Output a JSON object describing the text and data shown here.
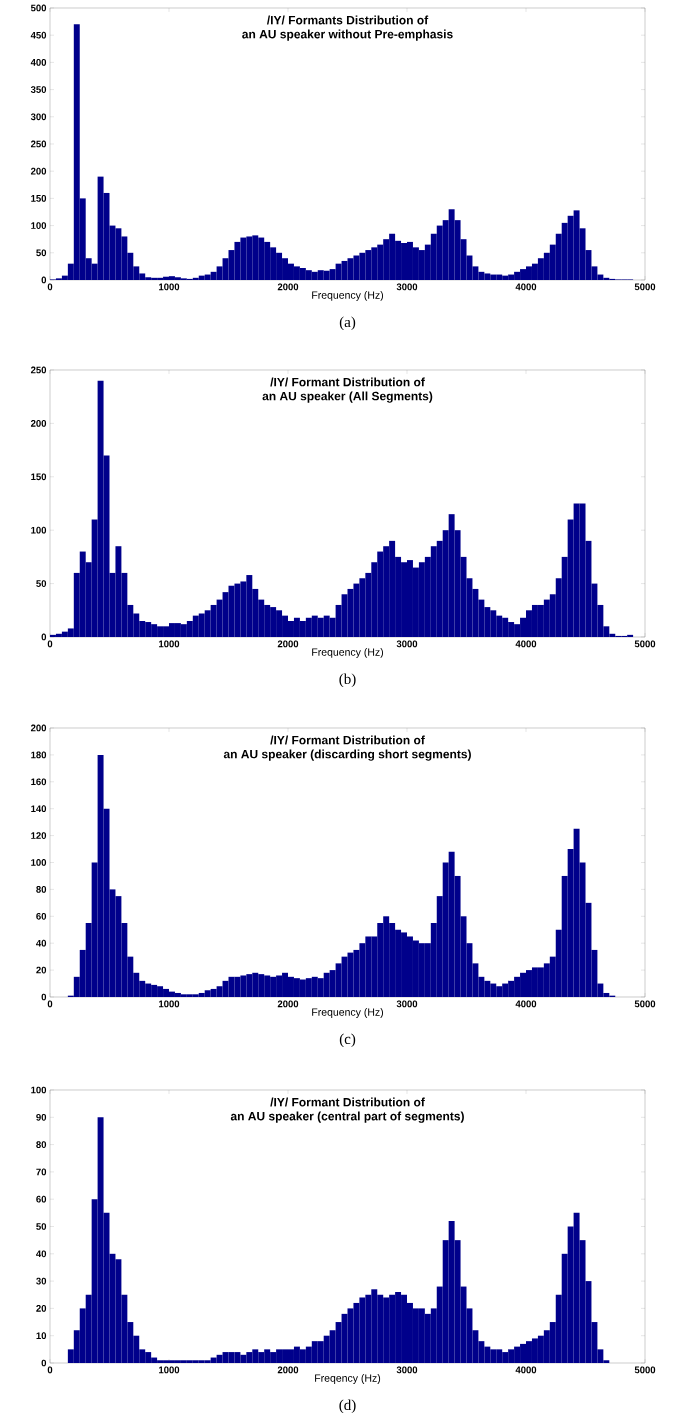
{
  "chart_data": [
    {
      "type": "histogram",
      "title": "/IY/ Formants Distribution of",
      "subtitle": "an AU speaker  without Pre-emphasis",
      "xlabel": "Frequency (Hz)",
      "annotations": [
        "(a)"
      ],
      "color": "#00008b",
      "xlim": [
        0,
        5000
      ],
      "ylim": [
        0,
        500
      ],
      "xticks": [
        0,
        1000,
        2000,
        3000,
        4000,
        5000
      ],
      "yticks": [
        0,
        50,
        100,
        150,
        200,
        250,
        300,
        350,
        400,
        450,
        500
      ],
      "grid": false,
      "bins": [
        0,
        50,
        100,
        150,
        200,
        250,
        300,
        350,
        400,
        450,
        500,
        550,
        600,
        650,
        700,
        750,
        800,
        850,
        900,
        950,
        1000,
        1050,
        1100,
        1150,
        1200,
        1250,
        1300,
        1350,
        1400,
        1450,
        1500,
        1550,
        1600,
        1650,
        1700,
        1750,
        1800,
        1850,
        1900,
        1950,
        2000,
        2050,
        2100,
        2150,
        2200,
        2250,
        2300,
        2350,
        2400,
        2450,
        2500,
        2550,
        2600,
        2650,
        2700,
        2750,
        2800,
        2850,
        2900,
        2950,
        3000,
        3050,
        3100,
        3150,
        3200,
        3250,
        3300,
        3350,
        3400,
        3450,
        3500,
        3550,
        3600,
        3650,
        3700,
        3750,
        3800,
        3850,
        3900,
        3950,
        4000,
        4050,
        4100,
        4150,
        4200,
        4250,
        4300,
        4350,
        4400,
        4450,
        4500,
        4550,
        4600,
        4650,
        4700,
        4750,
        4800,
        4850,
        4900,
        4950,
        5000
      ],
      "values": [
        1,
        3,
        8,
        30,
        470,
        150,
        40,
        30,
        190,
        160,
        100,
        95,
        80,
        50,
        25,
        12,
        5,
        4,
        4,
        6,
        7,
        5,
        3,
        2,
        4,
        8,
        10,
        15,
        25,
        40,
        55,
        70,
        78,
        80,
        82,
        78,
        70,
        60,
        50,
        40,
        30,
        25,
        22,
        18,
        15,
        18,
        17,
        20,
        30,
        35,
        40,
        45,
        50,
        55,
        60,
        65,
        75,
        85,
        72,
        68,
        70,
        60,
        55,
        65,
        85,
        100,
        110,
        130,
        110,
        75,
        45,
        25,
        15,
        12,
        10,
        10,
        8,
        10,
        15,
        20,
        25,
        30,
        40,
        50,
        65,
        85,
        105,
        118,
        128,
        95,
        55,
        25,
        10,
        4,
        2,
        1,
        1,
        1,
        0,
        0
      ]
    },
    {
      "type": "histogram",
      "title": "/IY/ Formant Distribution of",
      "subtitle": "an AU speaker (All Segments)",
      "xlabel": "Frequency (Hz)",
      "annotations": [
        "(b)"
      ],
      "color": "#00008b",
      "xlim": [
        0,
        5000
      ],
      "ylim": [
        0,
        250
      ],
      "xticks": [
        0,
        1000,
        2000,
        3000,
        4000,
        5000
      ],
      "yticks": [
        0,
        50,
        100,
        150,
        200,
        250
      ],
      "grid": false,
      "bins": [
        0,
        50,
        100,
        150,
        200,
        250,
        300,
        350,
        400,
        450,
        500,
        550,
        600,
        650,
        700,
        750,
        800,
        850,
        900,
        950,
        1000,
        1050,
        1100,
        1150,
        1200,
        1250,
        1300,
        1350,
        1400,
        1450,
        1500,
        1550,
        1600,
        1650,
        1700,
        1750,
        1800,
        1850,
        1900,
        1950,
        2000,
        2050,
        2100,
        2150,
        2200,
        2250,
        2300,
        2350,
        2400,
        2450,
        2500,
        2550,
        2600,
        2650,
        2700,
        2750,
        2800,
        2850,
        2900,
        2950,
        3000,
        3050,
        3100,
        3150,
        3200,
        3250,
        3300,
        3350,
        3400,
        3450,
        3500,
        3550,
        3600,
        3650,
        3700,
        3750,
        3800,
        3850,
        3900,
        3950,
        4000,
        4050,
        4100,
        4150,
        4200,
        4250,
        4300,
        4350,
        4400,
        4450,
        4500,
        4550,
        4600,
        4650,
        4700,
        4750,
        4800,
        4850,
        4900,
        4950,
        5000
      ],
      "values": [
        2,
        3,
        5,
        8,
        60,
        80,
        70,
        110,
        240,
        170,
        60,
        85,
        60,
        30,
        22,
        15,
        14,
        12,
        10,
        10,
        13,
        13,
        12,
        15,
        20,
        22,
        25,
        30,
        35,
        42,
        48,
        50,
        52,
        58,
        45,
        35,
        30,
        28,
        25,
        20,
        15,
        18,
        15,
        18,
        20,
        18,
        20,
        18,
        30,
        40,
        45,
        50,
        55,
        60,
        70,
        80,
        85,
        90,
        75,
        70,
        72,
        65,
        70,
        75,
        85,
        90,
        100,
        115,
        100,
        75,
        55,
        45,
        35,
        28,
        25,
        20,
        18,
        14,
        12,
        18,
        25,
        30,
        30,
        35,
        40,
        55,
        75,
        110,
        125,
        125,
        90,
        50,
        30,
        10,
        3,
        1,
        1,
        2,
        0,
        0
      ]
    },
    {
      "type": "histogram",
      "title": "/IY/ Formant Distribution of",
      "subtitle": "an AU speaker (discarding short segments)",
      "xlabel": "Frequency (Hz)",
      "annotations": [
        "(c)"
      ],
      "color": "#00008b",
      "xlim": [
        0,
        5000
      ],
      "ylim": [
        0,
        200
      ],
      "xticks": [
        0,
        1000,
        2000,
        3000,
        4000,
        5000
      ],
      "yticks": [
        0,
        20,
        40,
        60,
        80,
        100,
        120,
        140,
        160,
        180,
        200
      ],
      "grid": false,
      "bins": [
        0,
        50,
        100,
        150,
        200,
        250,
        300,
        350,
        400,
        450,
        500,
        550,
        600,
        650,
        700,
        750,
        800,
        850,
        900,
        950,
        1000,
        1050,
        1100,
        1150,
        1200,
        1250,
        1300,
        1350,
        1400,
        1450,
        1500,
        1550,
        1600,
        1650,
        1700,
        1750,
        1800,
        1850,
        1900,
        1950,
        2000,
        2050,
        2100,
        2150,
        2200,
        2250,
        2300,
        2350,
        2400,
        2450,
        2500,
        2550,
        2600,
        2650,
        2700,
        2750,
        2800,
        2850,
        2900,
        2950,
        3000,
        3050,
        3100,
        3150,
        3200,
        3250,
        3300,
        3350,
        3400,
        3450,
        3500,
        3550,
        3600,
        3650,
        3700,
        3750,
        3800,
        3850,
        3900,
        3950,
        4000,
        4050,
        4100,
        4150,
        4200,
        4250,
        4300,
        4350,
        4400,
        4450,
        4500,
        4550,
        4600,
        4650,
        4700,
        4750,
        4800,
        4850,
        4900,
        4950,
        5000
      ],
      "values": [
        0,
        0,
        0,
        1,
        15,
        35,
        55,
        100,
        180,
        140,
        80,
        75,
        55,
        30,
        18,
        12,
        10,
        9,
        8,
        6,
        4,
        3,
        2,
        2,
        2,
        3,
        5,
        6,
        8,
        12,
        15,
        15,
        16,
        17,
        18,
        17,
        16,
        15,
        16,
        18,
        15,
        14,
        13,
        14,
        15,
        14,
        18,
        20,
        25,
        30,
        33,
        35,
        40,
        45,
        45,
        55,
        60,
        55,
        50,
        48,
        45,
        42,
        40,
        40,
        55,
        75,
        100,
        108,
        90,
        60,
        40,
        25,
        15,
        12,
        10,
        8,
        10,
        12,
        15,
        18,
        20,
        22,
        22,
        25,
        30,
        50,
        90,
        110,
        125,
        100,
        70,
        35,
        10,
        3,
        1,
        0,
        0,
        0,
        0,
        0
      ]
    },
    {
      "type": "histogram",
      "title": "/IY/ Formant Distribution of",
      "subtitle": "an AU speaker (central part of segments)",
      "xlabel": "Freqency (Hz)",
      "annotations": [
        "(d)"
      ],
      "color": "#00008b",
      "xlim": [
        0,
        5000
      ],
      "ylim": [
        0,
        100
      ],
      "xticks": [
        0,
        1000,
        2000,
        3000,
        4000,
        5000
      ],
      "yticks": [
        0,
        10,
        20,
        30,
        40,
        50,
        60,
        70,
        80,
        90,
        100
      ],
      "grid": false,
      "bins": [
        0,
        50,
        100,
        150,
        200,
        250,
        300,
        350,
        400,
        450,
        500,
        550,
        600,
        650,
        700,
        750,
        800,
        850,
        900,
        950,
        1000,
        1050,
        1100,
        1150,
        1200,
        1250,
        1300,
        1350,
        1400,
        1450,
        1500,
        1550,
        1600,
        1650,
        1700,
        1750,
        1800,
        1850,
        1900,
        1950,
        2000,
        2050,
        2100,
        2150,
        2200,
        2250,
        2300,
        2350,
        2400,
        2450,
        2500,
        2550,
        2600,
        2650,
        2700,
        2750,
        2800,
        2850,
        2900,
        2950,
        3000,
        3050,
        3100,
        3150,
        3200,
        3250,
        3300,
        3350,
        3400,
        3450,
        3500,
        3550,
        3600,
        3650,
        3700,
        3750,
        3800,
        3850,
        3900,
        3950,
        4000,
        4050,
        4100,
        4150,
        4200,
        4250,
        4300,
        4350,
        4400,
        4450,
        4500,
        4550,
        4600,
        4650,
        4700,
        4750,
        4800,
        4850,
        4900,
        4950,
        5000
      ],
      "values": [
        0,
        0,
        0,
        5,
        12,
        20,
        25,
        60,
        90,
        55,
        40,
        38,
        25,
        15,
        10,
        5,
        4,
        2,
        1,
        1,
        1,
        1,
        1,
        1,
        1,
        1,
        1,
        2,
        3,
        4,
        4,
        4,
        3,
        4,
        5,
        4,
        5,
        4,
        5,
        5,
        5,
        6,
        5,
        6,
        8,
        8,
        10,
        12,
        15,
        18,
        20,
        22,
        24,
        25,
        27,
        25,
        24,
        25,
        26,
        25,
        22,
        20,
        20,
        18,
        20,
        28,
        45,
        52,
        45,
        28,
        20,
        12,
        8,
        6,
        5,
        5,
        4,
        5,
        6,
        7,
        8,
        9,
        10,
        12,
        15,
        25,
        40,
        50,
        55,
        45,
        30,
        15,
        5,
        1,
        0,
        0,
        0,
        0,
        0,
        0
      ]
    }
  ]
}
